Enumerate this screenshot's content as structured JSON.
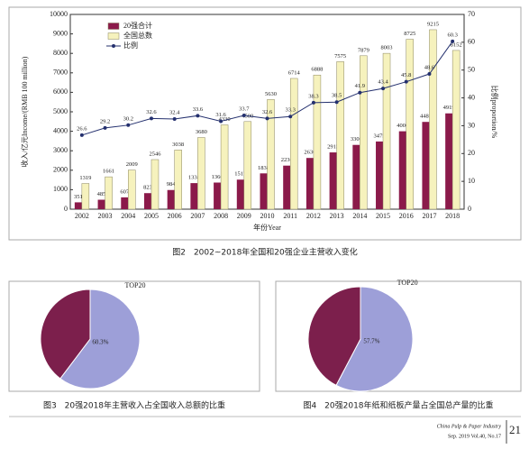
{
  "chart_data": [
    {
      "type": "bar",
      "caption": "图2　2002~2018年全国和20强企业主营收入变化",
      "xlabel": "年份Year",
      "ylabel": "收入/亿元Income/(RMB 100 million)",
      "y2label": "比例proportion/%",
      "categories": [
        "2002",
        "2003",
        "2004",
        "2005",
        "2006",
        "2007",
        "2008",
        "2009",
        "2010",
        "2011",
        "2012",
        "2013",
        "2014",
        "2015",
        "2016",
        "2017",
        "2018"
      ],
      "series": [
        {
          "name": "20强合计",
          "type": "bar",
          "color": "#8b1a4a",
          "values": [
            351,
            485,
            607,
            823,
            984,
            1338,
            1366,
            1517,
            1838,
            2236,
            2630,
            2915,
            3300,
            3475,
            4000,
            4481,
            4919
          ]
        },
        {
          "name": "全国总数",
          "type": "bar",
          "color": "#f6f2bd",
          "values": [
            1319,
            1661,
            2009,
            2546,
            3038,
            3680,
            4330,
            4500,
            5630,
            6714,
            6888,
            7575,
            7879,
            8003,
            8725,
            9215,
            8152
          ]
        },
        {
          "name": "比例",
          "type": "line",
          "axis": "y2",
          "color": "#24306e",
          "values": [
            26.6,
            29.2,
            30.2,
            32.6,
            32.4,
            33.6,
            31.6,
            33.7,
            32.6,
            33.3,
            38.3,
            38.5,
            41.9,
            43.4,
            45.8,
            48.6,
            60.3
          ]
        }
      ],
      "ylim": [
        0,
        10000
      ],
      "yticks": [
        0,
        1000,
        2000,
        3000,
        4000,
        5000,
        6000,
        7000,
        8000,
        9000,
        10000
      ],
      "y2lim": [
        0,
        70
      ],
      "y2ticks": [
        0,
        10,
        20,
        30,
        40,
        50,
        60,
        70
      ],
      "legend": "upper-left"
    },
    {
      "type": "pie",
      "caption": "图3　20强2018年主营收入占全国收入总额的比重",
      "categories": [
        "TOP20",
        null
      ],
      "values": [
        60.3,
        39.7
      ],
      "value_labels": [
        "60.3%",
        null
      ],
      "colors": [
        "#9d9fd8",
        "#7c1f4c"
      ]
    },
    {
      "type": "pie",
      "caption": "图4　20强2018年纸和纸板产量占全国总产量的比重",
      "categories": [
        "TOP20",
        null
      ],
      "values": [
        57.7,
        42.3
      ],
      "value_labels": [
        "57.7%",
        null
      ],
      "colors": [
        "#9d9fd8",
        "#7c1f4c"
      ]
    }
  ],
  "footer": {
    "journal": "China Pulp & Paper Industry",
    "issue": "Sep. 2019 Vol.40, No.17",
    "page": "21"
  }
}
